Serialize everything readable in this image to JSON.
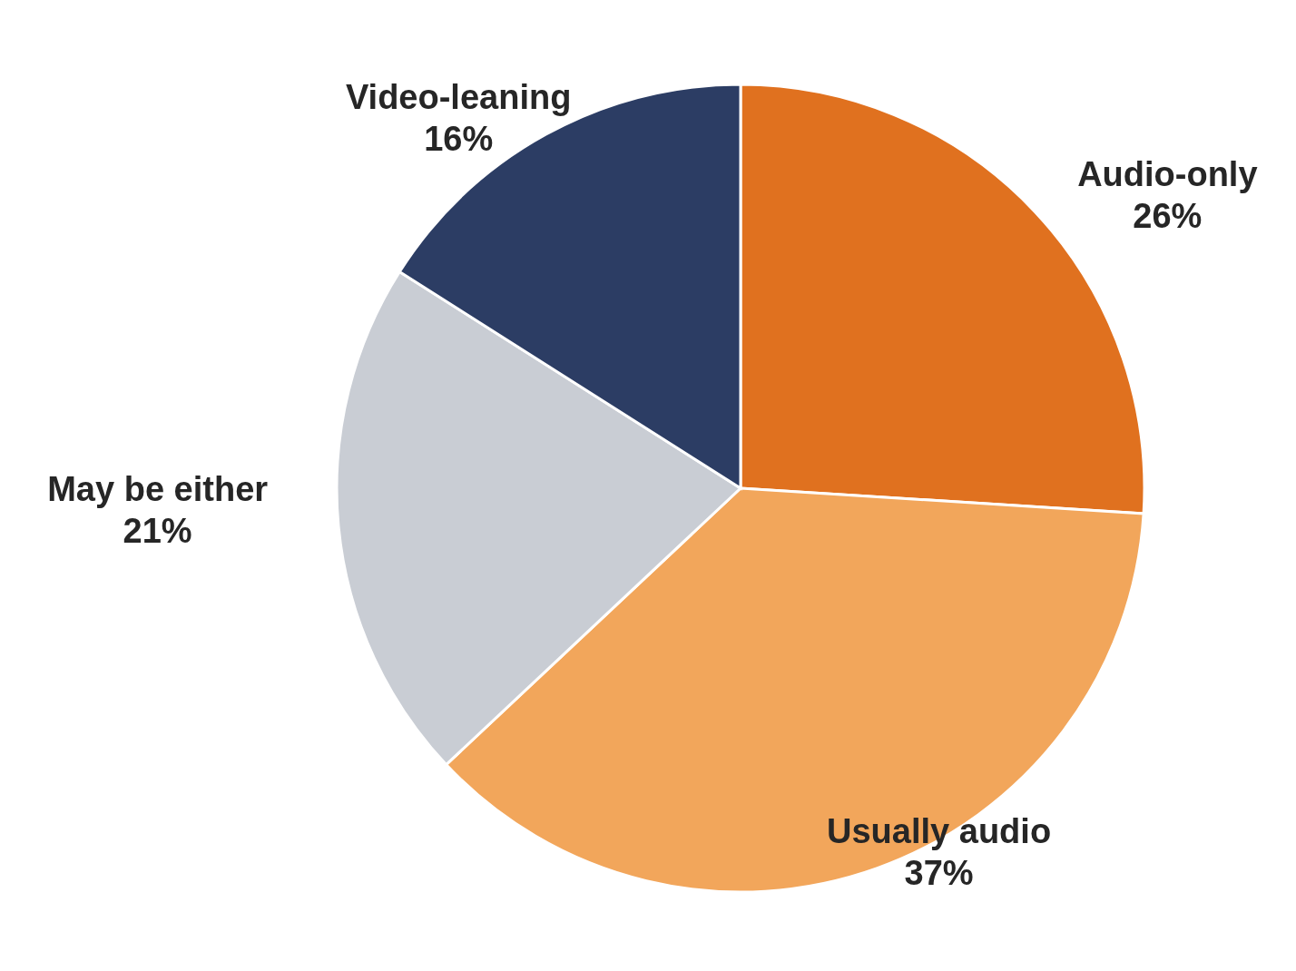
{
  "chart_data": {
    "type": "pie",
    "categories": [
      "Audio-only",
      "Usually audio",
      "May be either",
      "Video-leaning"
    ],
    "values": [
      26,
      37,
      21,
      16
    ],
    "value_labels": [
      "26%",
      "37%",
      "21%",
      "16%"
    ],
    "colors": [
      "#e0711f",
      "#f2a65b",
      "#c9cdd4",
      "#2c3d64"
    ],
    "legend": false
  }
}
